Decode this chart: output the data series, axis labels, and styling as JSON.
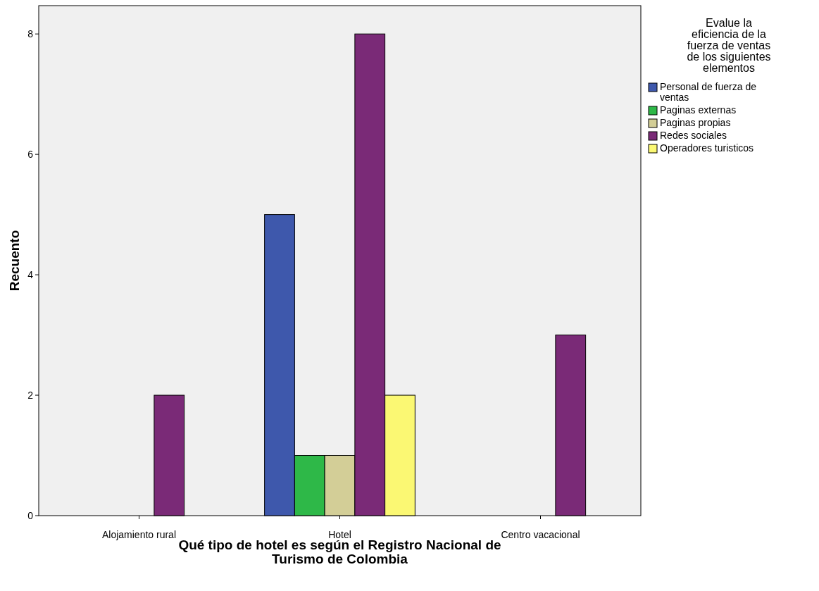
{
  "chart_data": {
    "type": "bar",
    "xlabel": "Qué tipo de hotel es según el Registro Nacional de Turismo de Colombia",
    "ylabel": "Recuento",
    "legend_title": "Evalue la eficiencia de la fuerza de ventas de los siguientes elementos",
    "categories": [
      "Alojamiento rural",
      "Hotel",
      "Centro vacacional"
    ],
    "series": [
      {
        "name": "Personal de fuerza de ventas",
        "color": "#3e58ac",
        "values": [
          null,
          5,
          null
        ]
      },
      {
        "name": "Paginas externas",
        "color": "#2eb848",
        "values": [
          null,
          1,
          null
        ]
      },
      {
        "name": "Paginas propias",
        "color": "#d3ce97",
        "values": [
          null,
          1,
          null
        ]
      },
      {
        "name": "Redes sociales",
        "color": "#7a2a77",
        "values": [
          2,
          8,
          3
        ]
      },
      {
        "name": "Operadores turisticos",
        "color": "#fbf873",
        "values": [
          null,
          2,
          null
        ]
      }
    ],
    "ylim": [
      0,
      8.47
    ],
    "yticks": [
      0,
      2,
      4,
      6,
      8
    ],
    "grid": false,
    "legend": "right"
  }
}
